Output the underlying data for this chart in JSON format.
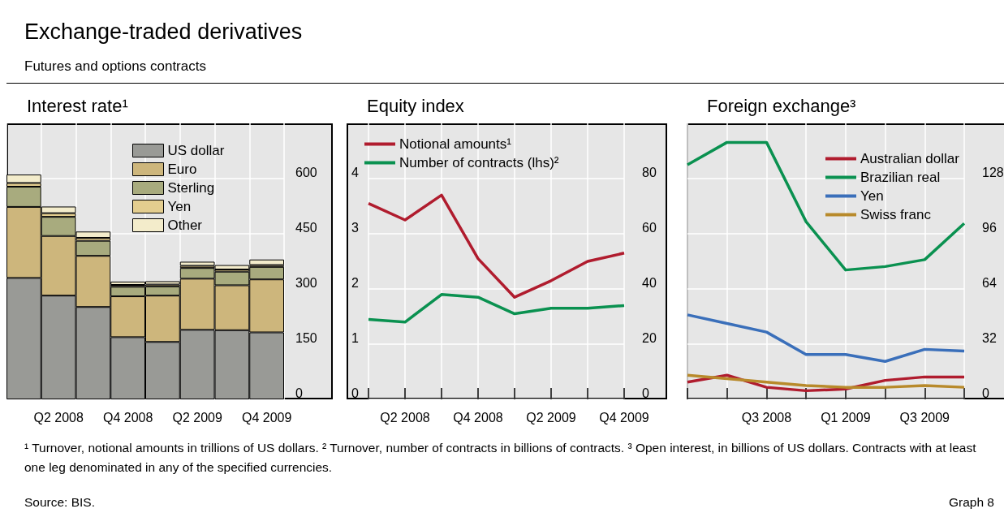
{
  "chart_data": [
    {
      "type": "bar",
      "title": "Interest rate¹",
      "categories": [
        null,
        "Q2 2008",
        null,
        "Q4 2008",
        null,
        "Q2 2009",
        null,
        "Q4 2009"
      ],
      "stacked": true,
      "ylim": [
        0,
        750
      ],
      "yticks": [
        0,
        150,
        300,
        450,
        600
      ],
      "grid": true,
      "legend": "top",
      "series": [
        {
          "name": "US dollar",
          "color": "#999a96",
          "values": [
            330,
            282,
            251,
            169,
            156,
            189,
            188,
            182
          ]
        },
        {
          "name": "Euro",
          "color": "#cdb67c",
          "values": [
            193,
            162,
            139,
            111,
            126,
            139,
            122,
            144
          ]
        },
        {
          "name": "Sterling",
          "color": "#a8ab7e",
          "values": [
            55,
            52,
            41,
            26,
            25,
            29,
            37,
            34
          ]
        },
        {
          "name": "Yen",
          "color": "#e3cd8f",
          "values": [
            10,
            10,
            8,
            5,
            5,
            6,
            6,
            5
          ]
        },
        {
          "name": "Other",
          "color": "#f3eccb",
          "values": [
            23,
            18,
            17,
            9,
            9,
            11,
            12,
            15
          ]
        }
      ]
    },
    {
      "type": "line",
      "title": "Equity index",
      "categories": [
        null,
        "Q2 2008",
        null,
        "Q4 2008",
        null,
        "Q2 2009",
        null,
        "Q4 2009"
      ],
      "ylim": [
        0,
        5
      ],
      "yticks": [
        0,
        1,
        2,
        3,
        4
      ],
      "y2lim": [
        0,
        100
      ],
      "y2ticks": [
        0,
        20,
        40,
        60,
        80
      ],
      "grid": true,
      "legend": "top left",
      "marker": "none",
      "series": [
        {
          "name": "Notional amounts¹",
          "color": "#b01c2e",
          "axis": "y2",
          "values": [
            71,
            65,
            74,
            51,
            37,
            43,
            50,
            53
          ]
        },
        {
          "name": "Number of contracts (lhs)²",
          "color": "#0a9150",
          "axis": "y",
          "values": [
            1.45,
            1.4,
            1.9,
            1.85,
            1.55,
            1.65,
            1.65,
            1.7
          ]
        }
      ]
    },
    {
      "type": "line",
      "title": "Foreign exchange³",
      "categories": [
        null,
        null,
        "Q3 2008",
        null,
        "Q1 2009",
        null,
        "Q3 2009",
        null
      ],
      "ylim": [
        0,
        160
      ],
      "yticks": [
        0,
        32,
        64,
        96,
        128
      ],
      "grid": true,
      "legend": "top right",
      "marker": "none",
      "series": [
        {
          "name": "Australian dollar",
          "color": "#b01c2e",
          "values": [
            10,
            14,
            7,
            5,
            6,
            11,
            13,
            13
          ]
        },
        {
          "name": "Brazilian real",
          "color": "#0a9150",
          "values": [
            136,
            149,
            149,
            103,
            75,
            77,
            81,
            102
          ]
        },
        {
          "name": "Yen",
          "color": "#3a6fba",
          "values": [
            49,
            44,
            39,
            26,
            26,
            22,
            29,
            28
          ]
        },
        {
          "name": "Swiss franc",
          "color": "#b88a2b",
          "values": [
            14,
            12,
            10,
            8,
            7,
            7,
            8,
            7
          ]
        }
      ]
    },
    {
      "type": "other",
      "title": "Exchange-traded derivatives",
      "subtitle": "Futures and options contracts",
      "annotations": [
        "¹ Turnover, notional amounts in trillions of US dollars.  ² Turnover, number of contracts in billions of contracts.  ³ Open interest, in billions of US dollars. Contracts with at least one leg denominated in any of the specified currencies.",
        "Source: BIS.",
        "Graph 8"
      ]
    }
  ]
}
